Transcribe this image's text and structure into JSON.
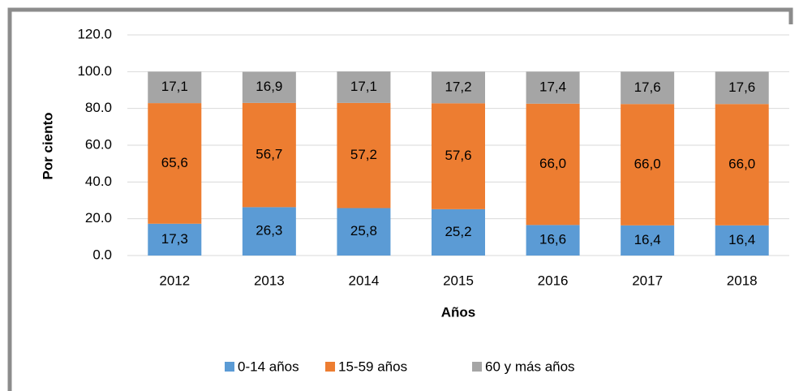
{
  "chart_data": {
    "type": "stacked_bar",
    "xlabel": "Años",
    "ylabel": "Por ciento",
    "categories": [
      "2012",
      "2013",
      "2014",
      "2015",
      "2016",
      "2017",
      "2018"
    ],
    "series": [
      {
        "name": "0-14 años",
        "color": "#5b9bd5",
        "values": [
          17.3,
          26.3,
          25.8,
          25.2,
          16.6,
          16.4,
          16.4
        ],
        "value_labels": [
          "17,3",
          "26,3",
          "25,8",
          "25,2",
          "16,6",
          "16,4",
          "16,4"
        ]
      },
      {
        "name": "15-59 años",
        "color": "#ed7d31",
        "values": [
          65.6,
          56.7,
          57.2,
          57.6,
          66.0,
          66.0,
          66.0
        ],
        "value_labels": [
          "65,6",
          "56,7",
          "57,2",
          "57,6",
          "66,0",
          "66,0",
          "66,0"
        ]
      },
      {
        "name": "60 y más años",
        "color": "#a5a5a5",
        "values": [
          17.1,
          16.9,
          17.1,
          17.2,
          17.4,
          17.6,
          17.6
        ],
        "value_labels": [
          "17,1",
          "16,9",
          "17,1",
          "17,2",
          "17,4",
          "17,6",
          "17,6"
        ]
      }
    ],
    "ylim": [
      0,
      120
    ],
    "yticks": [
      {
        "value": 0,
        "label": "0.0"
      },
      {
        "value": 20,
        "label": "20.0"
      },
      {
        "value": 40,
        "label": "40.0"
      },
      {
        "value": 60,
        "label": "60.0"
      },
      {
        "value": 80,
        "label": "80.0"
      },
      {
        "value": 100,
        "label": "100.0"
      },
      {
        "value": 120,
        "label": "120.0"
      }
    ],
    "grid": true,
    "legend": "bottom"
  }
}
